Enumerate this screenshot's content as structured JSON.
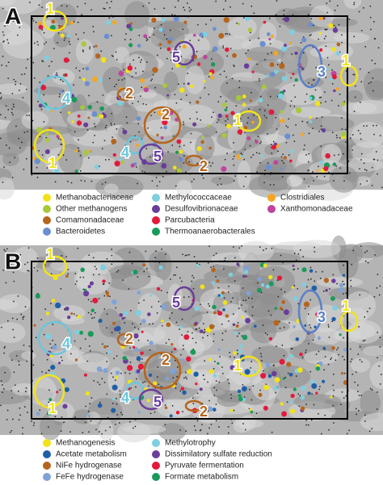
{
  "panels": [
    {
      "letter": "A",
      "annotations": [
        {
          "label": "1",
          "color": "#f2e21a"
        },
        {
          "label": "5",
          "color": "#6a3d9a"
        },
        {
          "label": "1",
          "color": "#f2e21a"
        },
        {
          "label": "3",
          "color": "#5b7fc7"
        },
        {
          "label": "2",
          "color": "#b5651d"
        },
        {
          "label": "4",
          "color": "#6cc6dc"
        },
        {
          "label": "2",
          "color": "#b5651d"
        },
        {
          "label": "1",
          "color": "#f2e21a"
        },
        {
          "label": "4",
          "color": "#6cc6dc"
        },
        {
          "label": "5",
          "color": "#6a3d9a"
        },
        {
          "label": "1",
          "color": "#f2e21a"
        },
        {
          "label": "2",
          "color": "#b5651d"
        }
      ],
      "legend": [
        {
          "label": "Methanobacteriaceae",
          "color": "#f2e21a"
        },
        {
          "label": "Other methanogens",
          "color": "#a8c83c"
        },
        {
          "label": "Comamonadaceae",
          "color": "#b5651d"
        },
        {
          "label": "Bacteroidetes",
          "color": "#6a8fd0"
        },
        {
          "label": "Methylococcaceae",
          "color": "#7ecfe0"
        },
        {
          "label": "Desulfovibrionaceae",
          "color": "#6a3d9a"
        },
        {
          "label": "Parcubacteria",
          "color": "#e31a3c"
        },
        {
          "label": "Thermoanaerobacterales",
          "color": "#1a9a5a"
        },
        {
          "label": "Clostridiales",
          "color": "#f5a623"
        },
        {
          "label": "Xanthomonadaceae",
          "color": "#c0449e"
        }
      ]
    },
    {
      "letter": "B",
      "annotations": [
        {
          "label": "1",
          "color": "#f2e21a"
        },
        {
          "label": "5",
          "color": "#6a3d9a"
        },
        {
          "label": "1",
          "color": "#f2e21a"
        },
        {
          "label": "3",
          "color": "#5b7fc7"
        },
        {
          "label": "2",
          "color": "#b5651d"
        },
        {
          "label": "4",
          "color": "#6cc6dc"
        },
        {
          "label": "2",
          "color": "#b5651d"
        },
        {
          "label": "1",
          "color": "#f2e21a"
        },
        {
          "label": "4",
          "color": "#6cc6dc"
        },
        {
          "label": "5",
          "color": "#6a3d9a"
        },
        {
          "label": "1",
          "color": "#f2e21a"
        },
        {
          "label": "2",
          "color": "#b5651d"
        }
      ],
      "legend": [
        {
          "label": "Methanogenesis",
          "color": "#f2e21a"
        },
        {
          "label": "Acetate metabolism",
          "color": "#1f5fa8"
        },
        {
          "label": "NiFe hydrogenase",
          "color": "#b5651d"
        },
        {
          "label": "FeFe hydrogenase",
          "color": "#7ea3d8"
        },
        {
          "label": "Methylotrophy",
          "color": "#7ecfe0"
        },
        {
          "label": "Dissimilatory sulfate reduction",
          "color": "#6a3d9a"
        },
        {
          "label": "Pyruvate fermentation",
          "color": "#e31a3c"
        },
        {
          "label": "Formate metabolism",
          "color": "#1a9a5a"
        }
      ]
    }
  ]
}
